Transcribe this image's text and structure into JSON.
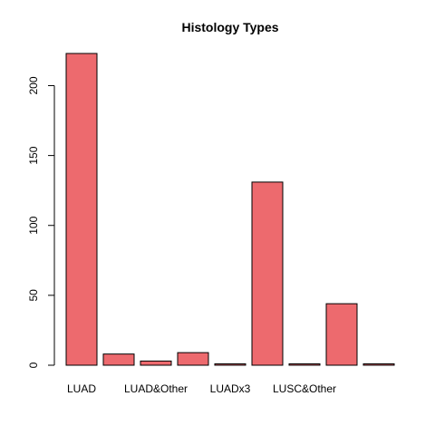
{
  "chart_data": {
    "type": "bar",
    "title": "Histology Types",
    "xlabel": "",
    "ylabel": "",
    "categories": [
      "LUAD",
      "",
      "LUAD&Other",
      "",
      "LUADx3",
      "",
      "LUSC&Other",
      "",
      ""
    ],
    "values": [
      223,
      8,
      3,
      9,
      1,
      131,
      1,
      44,
      1
    ],
    "yticks": [
      0,
      50,
      100,
      150,
      200
    ],
    "ylim": [
      0,
      223
    ],
    "bar_color": "#ED6A6E",
    "grid": false,
    "legend": "none"
  }
}
